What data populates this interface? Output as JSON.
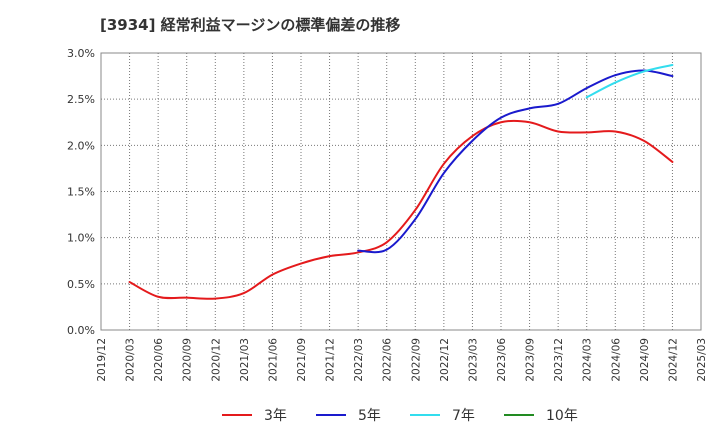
{
  "chart_data": {
    "type": "line",
    "title": "[3934]  経常利益マージンの標準偏差の推移",
    "y_ticks": [
      "0.0%",
      "0.5%",
      "1.0%",
      "1.5%",
      "2.0%",
      "2.5%",
      "3.0%"
    ],
    "x_ticks": [
      "2019/12",
      "2020/03",
      "2020/06",
      "2020/09",
      "2020/12",
      "2021/03",
      "2021/06",
      "2021/09",
      "2021/12",
      "2022/03",
      "2022/06",
      "2022/09",
      "2022/12",
      "2023/03",
      "2023/06",
      "2023/09",
      "2023/12",
      "2024/03",
      "2024/06",
      "2024/09",
      "2024/12",
      "2025/03"
    ],
    "ylim": [
      0,
      3.0
    ],
    "y_unit": "%",
    "grid": true,
    "legend_position": "bottom",
    "series": [
      {
        "name": "3年",
        "color": "#e41a1c",
        "points": [
          [
            "2020/03",
            0.52
          ],
          [
            "2020/06",
            0.36
          ],
          [
            "2020/09",
            0.35
          ],
          [
            "2020/12",
            0.34
          ],
          [
            "2021/03",
            0.4
          ],
          [
            "2021/06",
            0.6
          ],
          [
            "2021/09",
            0.72
          ],
          [
            "2021/12",
            0.8
          ],
          [
            "2022/03",
            0.84
          ],
          [
            "2022/06",
            0.95
          ],
          [
            "2022/09",
            1.3
          ],
          [
            "2022/12",
            1.8
          ],
          [
            "2023/03",
            2.1
          ],
          [
            "2023/06",
            2.25
          ],
          [
            "2023/09",
            2.25
          ],
          [
            "2023/12",
            2.15
          ],
          [
            "2024/03",
            2.14
          ],
          [
            "2024/06",
            2.15
          ],
          [
            "2024/09",
            2.05
          ],
          [
            "2024/12",
            1.82
          ]
        ]
      },
      {
        "name": "5年",
        "color": "#1a1acd",
        "points": [
          [
            "2022/03",
            0.86
          ],
          [
            "2022/06",
            0.87
          ],
          [
            "2022/09",
            1.2
          ],
          [
            "2022/12",
            1.7
          ],
          [
            "2023/03",
            2.05
          ],
          [
            "2023/06",
            2.3
          ],
          [
            "2023/09",
            2.4
          ],
          [
            "2023/12",
            2.45
          ],
          [
            "2024/03",
            2.62
          ],
          [
            "2024/06",
            2.76
          ],
          [
            "2024/09",
            2.81
          ],
          [
            "2024/12",
            2.75
          ]
        ]
      },
      {
        "name": "7年",
        "color": "#33ddee",
        "points": [
          [
            "2024/03",
            2.52
          ],
          [
            "2024/06",
            2.68
          ],
          [
            "2024/09",
            2.8
          ],
          [
            "2024/12",
            2.87
          ]
        ]
      },
      {
        "name": "10年",
        "color": "#228b22",
        "points": []
      }
    ]
  }
}
